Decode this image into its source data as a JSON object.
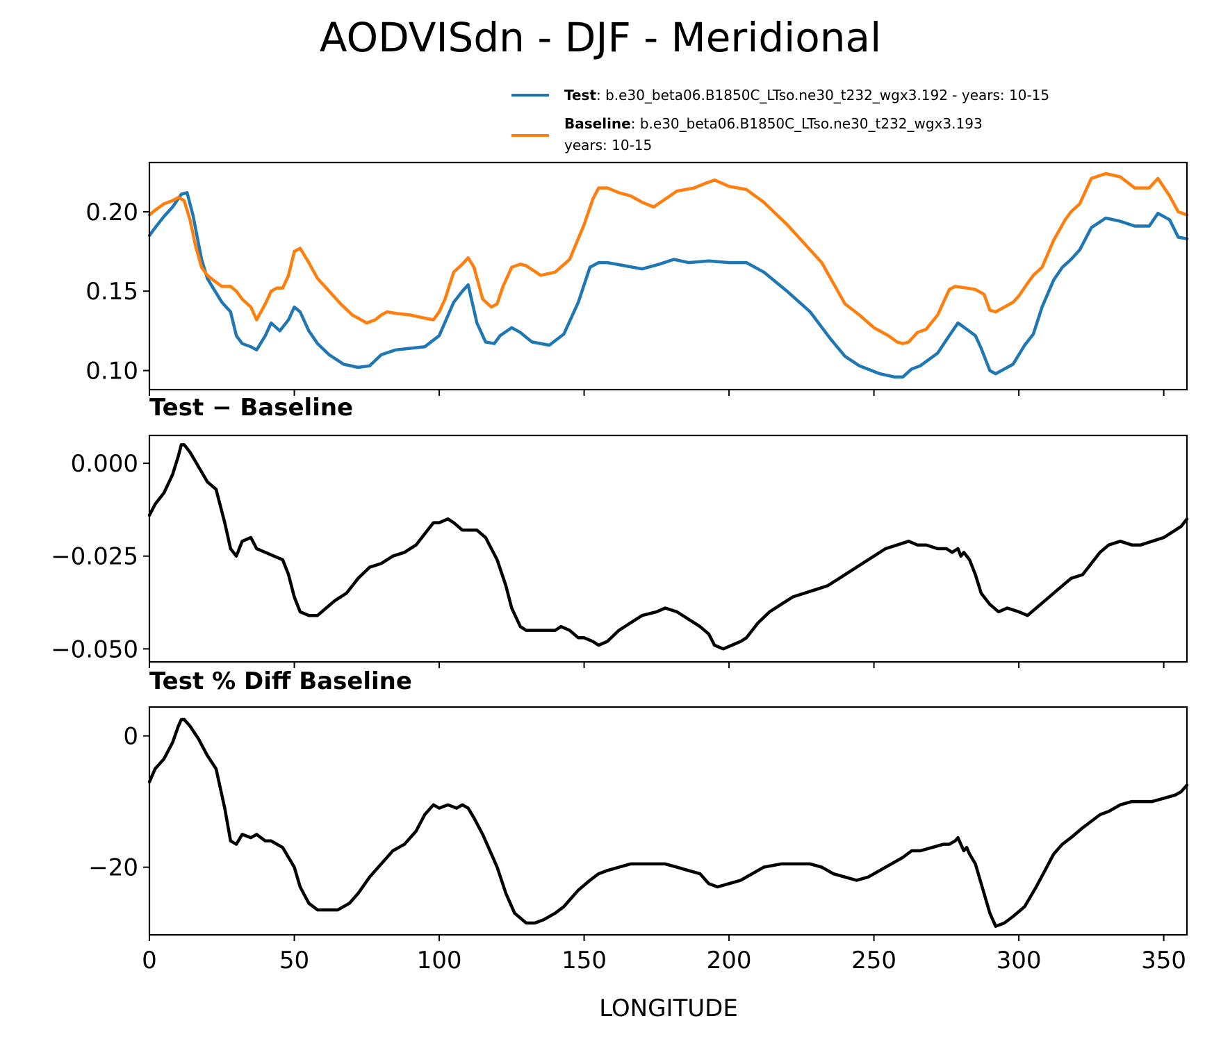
{
  "figure": {
    "title": "AODVISdn - DJF - Meridional",
    "xlabel": "LONGITUDE"
  },
  "legend": {
    "test_name": "Test",
    "test_text": ": b.e30_beta06.B1850C_LTso.ne30_t232_wgx3.192 - years: 10-15",
    "test_color": "#1f77b4",
    "base_name": "Baseline",
    "base_text": ": b.e30_beta06.B1850C_LTso.ne30_t232_wgx3.193",
    "base_text2": "years: 10-15",
    "base_color": "#ff7f0e"
  },
  "chart_data": [
    {
      "type": "line",
      "panel": "top",
      "title": "",
      "xlabel": "",
      "ylabel": "",
      "xlim": [
        0,
        358
      ],
      "ylim": [
        0.088,
        0.231
      ],
      "yticks": [
        0.1,
        0.15,
        0.2
      ],
      "ytick_labels": [
        "0.10",
        "0.15",
        "0.20"
      ],
      "xticks": [
        0,
        50,
        100,
        150,
        200,
        250,
        300,
        350
      ],
      "series": [
        {
          "name": "Test",
          "color": "#1f77b4",
          "x": [
            0,
            2,
            5,
            8,
            11,
            13,
            15,
            18,
            20,
            22,
            25,
            28,
            30,
            32,
            35,
            37,
            40,
            42,
            45,
            48,
            50,
            52,
            55,
            58,
            62,
            67,
            72,
            76,
            80,
            85,
            90,
            95,
            100,
            105,
            108,
            110,
            113,
            116,
            119,
            121,
            125,
            128,
            132,
            138,
            143,
            148,
            152,
            155,
            158,
            164,
            170,
            176,
            181,
            186,
            193,
            200,
            206,
            212,
            220,
            228,
            235,
            240,
            245,
            252,
            257,
            260,
            263,
            266,
            272,
            276,
            279,
            282,
            285,
            287,
            290,
            292,
            295,
            298,
            302,
            305,
            308,
            312,
            315,
            318,
            321,
            325,
            330,
            335,
            340,
            345,
            348,
            352,
            355,
            358
          ],
          "y": [
            0.185,
            0.19,
            0.197,
            0.203,
            0.211,
            0.212,
            0.198,
            0.17,
            0.158,
            0.152,
            0.143,
            0.137,
            0.122,
            0.117,
            0.115,
            0.113,
            0.122,
            0.13,
            0.125,
            0.132,
            0.14,
            0.137,
            0.125,
            0.117,
            0.11,
            0.104,
            0.102,
            0.103,
            0.11,
            0.113,
            0.114,
            0.115,
            0.122,
            0.143,
            0.15,
            0.154,
            0.13,
            0.118,
            0.117,
            0.122,
            0.127,
            0.124,
            0.118,
            0.116,
            0.123,
            0.143,
            0.165,
            0.168,
            0.168,
            0.166,
            0.164,
            0.167,
            0.17,
            0.168,
            0.169,
            0.168,
            0.168,
            0.162,
            0.15,
            0.137,
            0.12,
            0.109,
            0.103,
            0.098,
            0.096,
            0.096,
            0.101,
            0.103,
            0.111,
            0.122,
            0.13,
            0.126,
            0.122,
            0.114,
            0.1,
            0.098,
            0.101,
            0.104,
            0.116,
            0.123,
            0.14,
            0.157,
            0.165,
            0.17,
            0.176,
            0.19,
            0.196,
            0.194,
            0.191,
            0.191,
            0.199,
            0.195,
            0.184,
            0.183
          ]
        },
        {
          "name": "Baseline",
          "color": "#ff7f0e",
          "x": [
            0,
            2,
            5,
            8,
            10,
            12,
            14,
            16,
            18,
            20,
            22,
            25,
            28,
            30,
            32,
            35,
            37,
            40,
            42,
            44,
            46,
            48,
            50,
            52,
            55,
            58,
            62,
            66,
            70,
            75,
            78,
            80,
            82,
            85,
            90,
            95,
            98,
            100,
            102,
            105,
            108,
            110,
            112,
            115,
            118,
            120,
            122,
            125,
            128,
            130,
            135,
            140,
            145,
            150,
            153,
            155,
            158,
            162,
            166,
            170,
            174,
            178,
            182,
            188,
            192,
            195,
            200,
            206,
            212,
            220,
            226,
            232,
            236,
            240,
            245,
            250,
            255,
            258,
            260,
            262,
            265,
            268,
            272,
            276,
            278,
            282,
            285,
            288,
            290,
            292,
            295,
            298,
            300,
            303,
            305,
            308,
            312,
            316,
            318,
            321,
            325,
            330,
            335,
            340,
            345,
            348,
            352,
            355,
            358
          ],
          "y": [
            0.198,
            0.201,
            0.205,
            0.207,
            0.209,
            0.207,
            0.195,
            0.178,
            0.165,
            0.16,
            0.157,
            0.153,
            0.153,
            0.15,
            0.145,
            0.14,
            0.132,
            0.142,
            0.15,
            0.152,
            0.152,
            0.16,
            0.175,
            0.177,
            0.168,
            0.158,
            0.15,
            0.142,
            0.135,
            0.13,
            0.132,
            0.135,
            0.137,
            0.136,
            0.135,
            0.133,
            0.132,
            0.137,
            0.145,
            0.162,
            0.167,
            0.171,
            0.165,
            0.145,
            0.14,
            0.142,
            0.153,
            0.165,
            0.167,
            0.166,
            0.16,
            0.162,
            0.17,
            0.192,
            0.208,
            0.215,
            0.215,
            0.212,
            0.21,
            0.206,
            0.203,
            0.208,
            0.213,
            0.215,
            0.218,
            0.22,
            0.216,
            0.214,
            0.206,
            0.192,
            0.18,
            0.168,
            0.155,
            0.142,
            0.135,
            0.127,
            0.122,
            0.118,
            0.117,
            0.118,
            0.124,
            0.126,
            0.135,
            0.151,
            0.153,
            0.152,
            0.151,
            0.148,
            0.138,
            0.137,
            0.14,
            0.143,
            0.147,
            0.155,
            0.16,
            0.165,
            0.182,
            0.195,
            0.2,
            0.205,
            0.221,
            0.224,
            0.222,
            0.215,
            0.215,
            0.221,
            0.21,
            0.2,
            0.198
          ]
        }
      ]
    },
    {
      "type": "line",
      "panel": "middle",
      "title": "Test − Baseline",
      "xlabel": "",
      "ylabel": "",
      "xlim": [
        0,
        358
      ],
      "ylim": [
        -0.0535,
        0.0075
      ],
      "yticks": [
        0.0,
        -0.025,
        -0.05
      ],
      "ytick_labels": [
        "0.000",
        "−0.025",
        "−0.050"
      ],
      "xticks": [
        0,
        50,
        100,
        150,
        200,
        250,
        300,
        350
      ],
      "series": [
        {
          "name": "Test − Baseline",
          "color": "#000000",
          "x": [
            0,
            2,
            5,
            8,
            10,
            11,
            12,
            14,
            17,
            20,
            23,
            26,
            28,
            30,
            32,
            35,
            37,
            40,
            43,
            46,
            48,
            50,
            52,
            55,
            58,
            61,
            64,
            68,
            72,
            76,
            80,
            84,
            88,
            92,
            95,
            98,
            100,
            103,
            105,
            108,
            110,
            113,
            116,
            118,
            120,
            123,
            125,
            128,
            130,
            132,
            134,
            136,
            138,
            140,
            142,
            145,
            148,
            150,
            153,
            155,
            158,
            162,
            166,
            170,
            175,
            178,
            182,
            186,
            190,
            193,
            195,
            198,
            201,
            204,
            206,
            210,
            214,
            218,
            222,
            226,
            230,
            234,
            238,
            242,
            246,
            250,
            254,
            258,
            262,
            265,
            268,
            272,
            275,
            277,
            279,
            280,
            281,
            283,
            285,
            287,
            290,
            293,
            296,
            300,
            303,
            306,
            309,
            312,
            315,
            318,
            322,
            325,
            328,
            331,
            335,
            339,
            342,
            346,
            350,
            354,
            356,
            358
          ],
          "y": [
            -0.014,
            -0.011,
            -0.008,
            -0.003,
            0.002,
            0.005,
            0.005,
            0.003,
            -0.001,
            -0.005,
            -0.007,
            -0.016,
            -0.023,
            -0.025,
            -0.021,
            -0.02,
            -0.023,
            -0.024,
            -0.025,
            -0.026,
            -0.03,
            -0.036,
            -0.04,
            -0.041,
            -0.041,
            -0.039,
            -0.037,
            -0.035,
            -0.031,
            -0.028,
            -0.027,
            -0.025,
            -0.024,
            -0.022,
            -0.019,
            -0.016,
            -0.016,
            -0.015,
            -0.016,
            -0.018,
            -0.018,
            -0.018,
            -0.02,
            -0.023,
            -0.026,
            -0.033,
            -0.039,
            -0.044,
            -0.045,
            -0.045,
            -0.045,
            -0.045,
            -0.045,
            -0.045,
            -0.044,
            -0.045,
            -0.047,
            -0.047,
            -0.048,
            -0.049,
            -0.048,
            -0.045,
            -0.043,
            -0.041,
            -0.04,
            -0.039,
            -0.04,
            -0.042,
            -0.044,
            -0.046,
            -0.049,
            -0.05,
            -0.049,
            -0.048,
            -0.047,
            -0.043,
            -0.04,
            -0.038,
            -0.036,
            -0.035,
            -0.034,
            -0.033,
            -0.031,
            -0.029,
            -0.027,
            -0.025,
            -0.023,
            -0.022,
            -0.021,
            -0.022,
            -0.022,
            -0.023,
            -0.023,
            -0.024,
            -0.023,
            -0.025,
            -0.024,
            -0.026,
            -0.03,
            -0.035,
            -0.038,
            -0.04,
            -0.039,
            -0.04,
            -0.041,
            -0.039,
            -0.037,
            -0.035,
            -0.033,
            -0.031,
            -0.03,
            -0.027,
            -0.024,
            -0.022,
            -0.021,
            -0.022,
            -0.022,
            -0.021,
            -0.02,
            -0.018,
            -0.017,
            -0.015
          ]
        }
      ]
    },
    {
      "type": "line",
      "panel": "bottom",
      "title": "Test % Diff Baseline",
      "xlabel": "LONGITUDE",
      "ylabel": "",
      "xlim": [
        0,
        358
      ],
      "ylim": [
        -30.3,
        4.4
      ],
      "yticks": [
        0,
        -20
      ],
      "ytick_labels": [
        "0",
        "−20"
      ],
      "xticks": [
        0,
        50,
        100,
        150,
        200,
        250,
        300,
        350
      ],
      "xtick_labels": [
        "0",
        "50",
        "100",
        "150",
        "200",
        "250",
        "300",
        "350"
      ],
      "series": [
        {
          "name": "Test % Diff Baseline",
          "color": "#000000",
          "x": [
            0,
            2,
            5,
            8,
            10,
            11,
            12,
            14,
            17,
            20,
            23,
            26,
            28,
            30,
            32,
            35,
            37,
            40,
            42,
            44,
            46,
            50,
            52,
            55,
            58,
            61,
            65,
            69,
            72,
            76,
            80,
            84,
            88,
            92,
            95,
            98,
            100,
            103,
            106,
            108,
            110,
            112,
            115,
            118,
            120,
            123,
            126,
            130,
            133,
            136,
            140,
            143,
            145,
            148,
            152,
            155,
            158,
            162,
            166,
            170,
            175,
            178,
            182,
            186,
            190,
            193,
            196,
            200,
            204,
            208,
            212,
            218,
            224,
            228,
            232,
            236,
            240,
            244,
            248,
            252,
            256,
            260,
            263,
            266,
            270,
            274,
            276,
            278,
            279,
            280,
            281,
            282,
            283,
            285,
            287,
            290,
            292,
            295,
            298,
            302,
            306,
            309,
            312,
            315,
            318,
            322,
            325,
            328,
            331,
            335,
            339,
            342,
            346,
            350,
            354,
            356,
            358
          ],
          "y": [
            -7,
            -5,
            -3.5,
            -1,
            1.5,
            2.5,
            2.5,
            1.5,
            -0.5,
            -3,
            -5,
            -11,
            -16,
            -16.5,
            -15,
            -15.5,
            -15,
            -16,
            -16,
            -16.5,
            -17,
            -20,
            -23,
            -25.5,
            -26.5,
            -26.5,
            -26.5,
            -25.5,
            -24,
            -21.5,
            -19.5,
            -17.5,
            -16.5,
            -14.5,
            -12,
            -10.5,
            -11,
            -10.5,
            -11,
            -10.5,
            -11,
            -12.5,
            -15,
            -18,
            -20,
            -24,
            -27,
            -28.5,
            -28.5,
            -28,
            -27,
            -26,
            -25,
            -23.5,
            -22,
            -21,
            -20.5,
            -20,
            -19.5,
            -19.5,
            -19.5,
            -19.5,
            -20,
            -20.5,
            -21,
            -22.5,
            -23,
            -22.5,
            -22,
            -21,
            -20,
            -19.5,
            -19.5,
            -19.5,
            -20,
            -21,
            -21.5,
            -22,
            -21.5,
            -20.5,
            -19.5,
            -18.5,
            -17.5,
            -17.5,
            -17,
            -16.5,
            -16.5,
            -16,
            -15.5,
            -16.5,
            -17.5,
            -17,
            -18,
            -19.5,
            -22.5,
            -27,
            -29,
            -28.5,
            -27.5,
            -26,
            -23,
            -20.5,
            -18,
            -16.5,
            -15.5,
            -14,
            -13,
            -12,
            -11.5,
            -10.5,
            -10,
            -10,
            -10,
            -9.5,
            -9,
            -8.5,
            -7.5
          ]
        }
      ]
    }
  ]
}
